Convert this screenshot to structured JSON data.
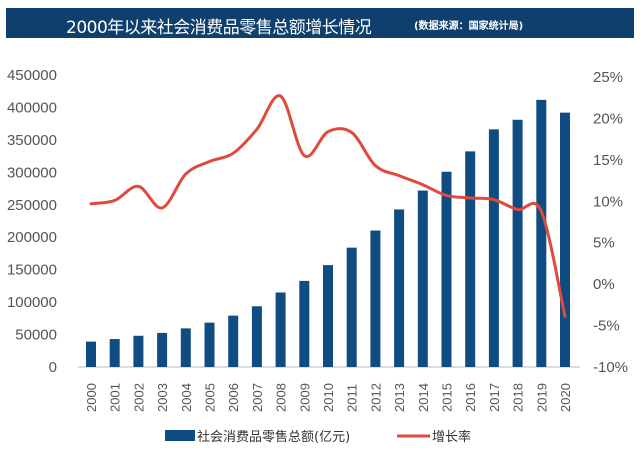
{
  "header": {
    "title": "2000年以来社会消费品零售总额增长情况",
    "source": "(数据来源：国家统计局)"
  },
  "colors": {
    "bar": "#0f4c81",
    "line": "#e04a3a",
    "title_bg": "#0f3f6c"
  },
  "chart_data": {
    "type": "bar+line",
    "title": "2000年以来社会消费品零售总额增长情况",
    "subtitle": "(数据来源：国家统计局)",
    "categories": [
      "2000",
      "2001",
      "2002",
      "2003",
      "2004",
      "2005",
      "2006",
      "2007",
      "2008",
      "2009",
      "2010",
      "2011",
      "2012",
      "2013",
      "2014",
      "2015",
      "2016",
      "2017",
      "2018",
      "2019",
      "2020"
    ],
    "series": [
      {
        "name": "社会消费品零售总额(亿元)",
        "type": "bar",
        "axis": "left",
        "values": [
          39106,
          43055,
          48136,
          52516,
          59501,
          68353,
          79145,
          93572,
          114830,
          132678,
          156998,
          183919,
          210307,
          242843,
          271896,
          300931,
          332316,
          366262,
          380987,
          411649,
          391981
        ]
      },
      {
        "name": "增长率",
        "type": "line",
        "axis": "right",
        "unit": "%",
        "values": [
          9.7,
          10.1,
          11.8,
          9.2,
          13.3,
          14.8,
          15.8,
          18.7,
          22.7,
          15.5,
          18.4,
          18.3,
          14.3,
          13.1,
          12.0,
          10.7,
          10.4,
          10.2,
          9.0,
          8.8,
          -3.9
        ]
      }
    ],
    "y_left": {
      "ylim": [
        0,
        450000
      ],
      "ticks": [
        "0",
        "50000",
        "100000",
        "150000",
        "200000",
        "250000",
        "300000",
        "350000",
        "400000",
        "450000"
      ]
    },
    "y_right": {
      "ylim": [
        -10,
        25
      ],
      "ticks": [
        "-10%",
        "-5%",
        "0%",
        "5%",
        "10%",
        "15%",
        "20%",
        "25%"
      ]
    },
    "grid": false,
    "legend_position": "bottom"
  }
}
